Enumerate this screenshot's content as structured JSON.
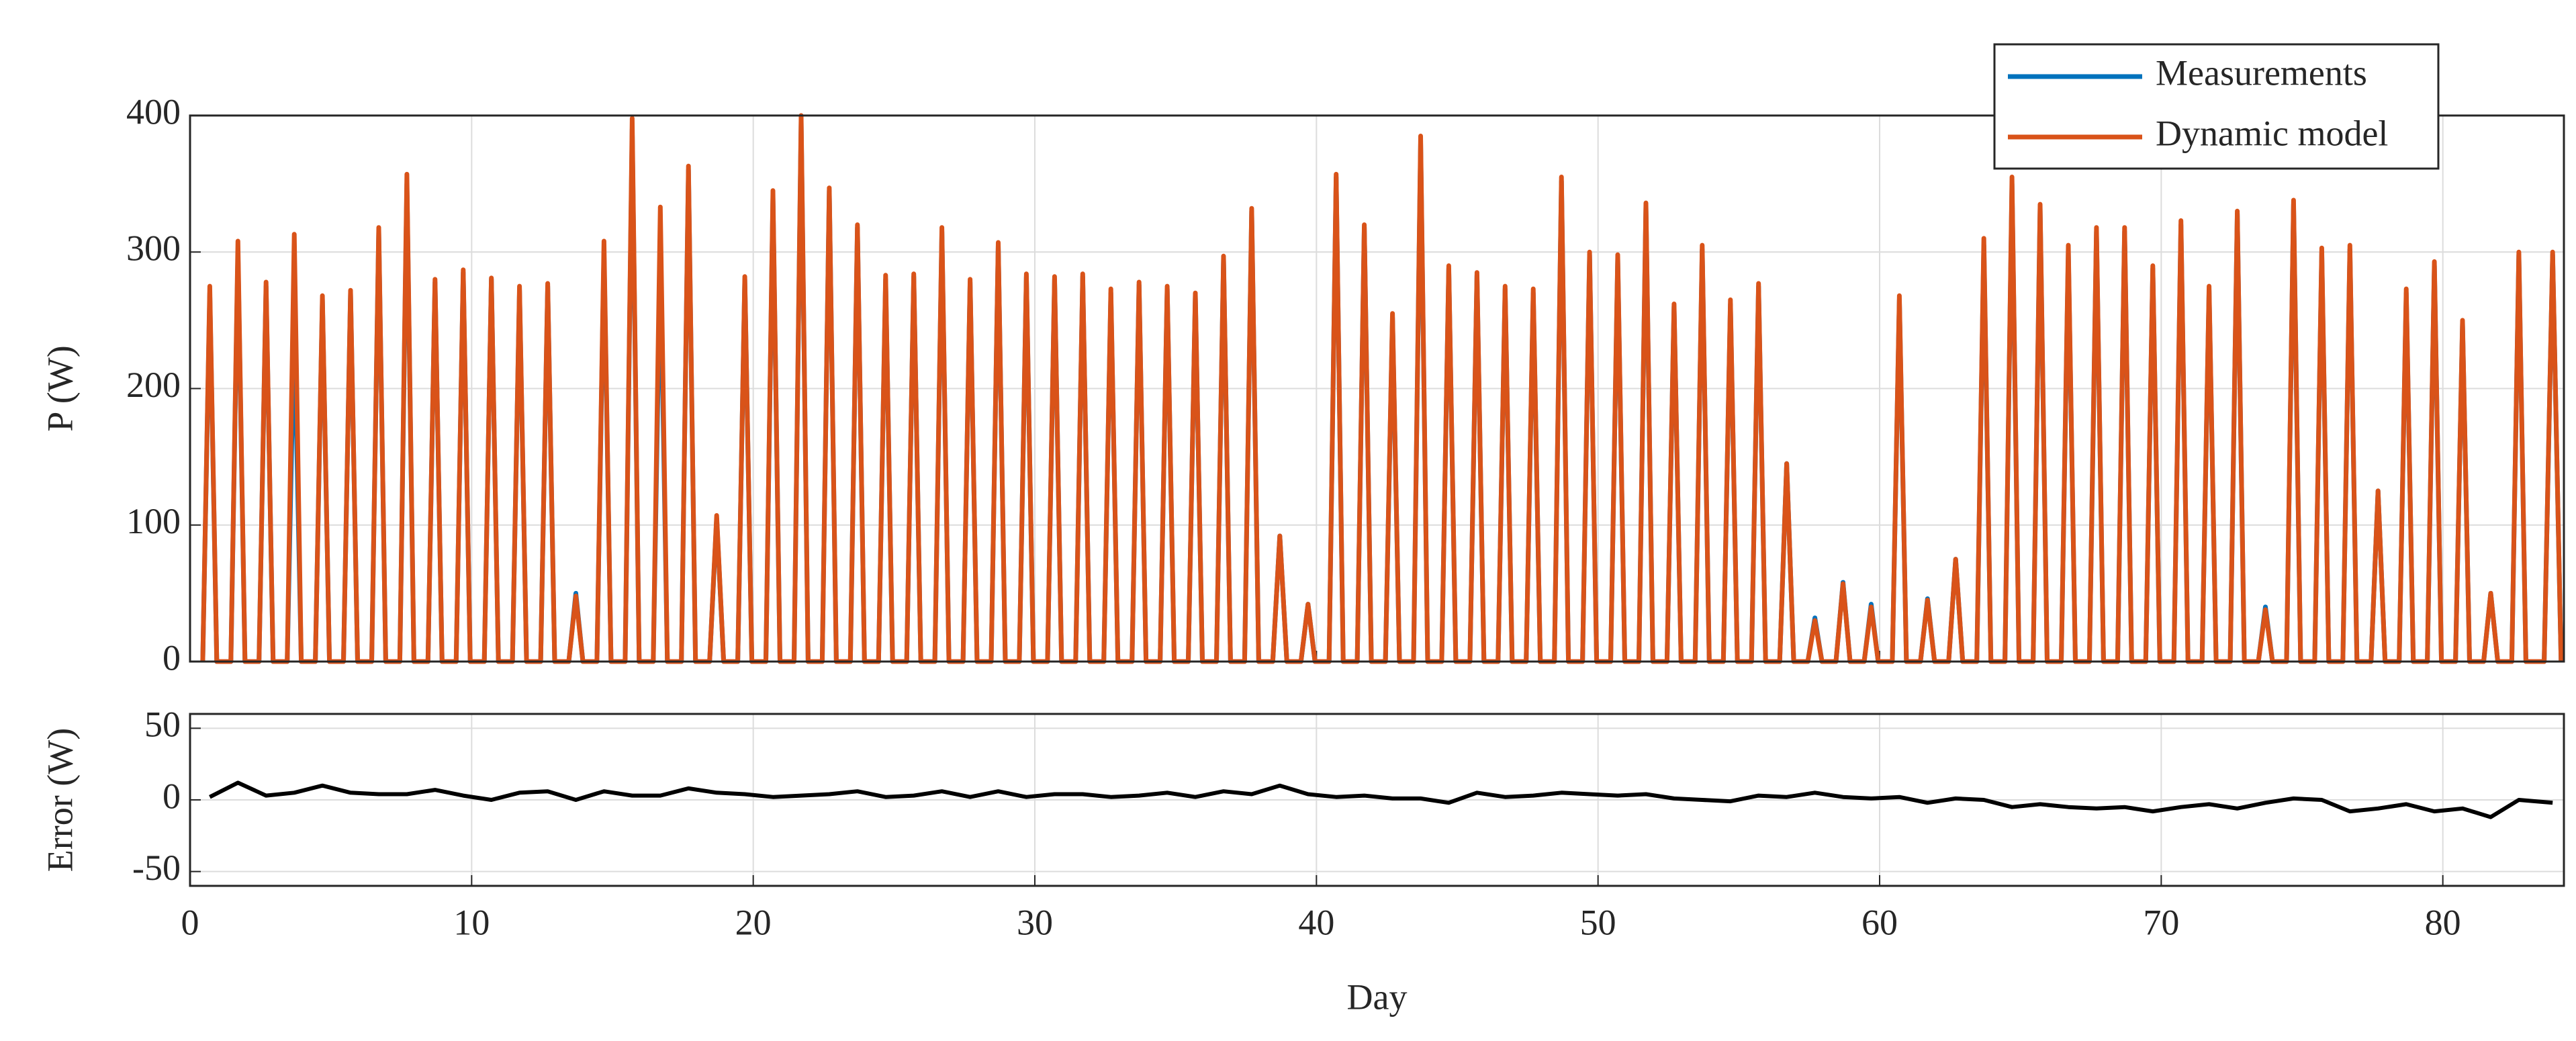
{
  "chart_data": [
    {
      "type": "line",
      "ylabel": "P (W)",
      "x": [
        0.45,
        0.7,
        0.95,
        1.45,
        1.7,
        1.95,
        2.45,
        2.7,
        2.95,
        3.45,
        3.7,
        3.95,
        4.45,
        4.7,
        4.95,
        5.45,
        5.7,
        5.95,
        6.45,
        6.7,
        6.95,
        7.45,
        7.7,
        7.95,
        8.45,
        8.7,
        8.95,
        9.45,
        9.7,
        9.95,
        10.45,
        10.7,
        10.95,
        11.45,
        11.7,
        11.95,
        12.45,
        12.7,
        12.95,
        13.45,
        13.7,
        13.95,
        14.45,
        14.7,
        14.95,
        15.45,
        15.7,
        15.95,
        16.45,
        16.7,
        16.95,
        17.45,
        17.7,
        17.95,
        18.45,
        18.7,
        18.95,
        19.45,
        19.7,
        19.95,
        20.45,
        20.7,
        20.95,
        21.45,
        21.7,
        21.95,
        22.45,
        22.7,
        22.95,
        23.45,
        23.7,
        23.95,
        24.45,
        24.7,
        24.95,
        25.45,
        25.7,
        25.95,
        26.45,
        26.7,
        26.95,
        27.45,
        27.7,
        27.95,
        28.45,
        28.7,
        28.95,
        29.45,
        29.7,
        29.95,
        30.45,
        30.7,
        30.95,
        31.45,
        31.7,
        31.95,
        32.45,
        32.7,
        32.95,
        33.45,
        33.7,
        33.95,
        34.45,
        34.7,
        34.95,
        35.45,
        35.7,
        35.95,
        36.45,
        36.7,
        36.95,
        37.45,
        37.7,
        37.95,
        38.45,
        38.7,
        38.95,
        39.45,
        39.7,
        39.95,
        40.45,
        40.7,
        40.95,
        41.45,
        41.7,
        41.95,
        42.45,
        42.7,
        42.95,
        43.45,
        43.7,
        43.95,
        44.45,
        44.7,
        44.95,
        45.45,
        45.7,
        45.95,
        46.45,
        46.7,
        46.95,
        47.45,
        47.7,
        47.95,
        48.45,
        48.7,
        48.95,
        49.45,
        49.7,
        49.95,
        50.45,
        50.7,
        50.95,
        51.45,
        51.7,
        51.95,
        52.45,
        52.7,
        52.95,
        53.45,
        53.7,
        53.95,
        54.45,
        54.7,
        54.95,
        55.45,
        55.7,
        55.95,
        56.45,
        56.7,
        56.95,
        57.45,
        57.7,
        57.95,
        58.45,
        58.7,
        58.95,
        59.45,
        59.7,
        59.95,
        60.45,
        60.7,
        60.95,
        61.45,
        61.7,
        61.95,
        62.45,
        62.7,
        62.95,
        63.45,
        63.7,
        63.95,
        64.45,
        64.7,
        64.95,
        65.45,
        65.7,
        65.95,
        66.45,
        66.7,
        66.95,
        67.45,
        67.7,
        67.95,
        68.45,
        68.7,
        68.95,
        69.45,
        69.7,
        69.95,
        70.45,
        70.7,
        70.95,
        71.45,
        71.7,
        71.95,
        72.45,
        72.7,
        72.95,
        73.45,
        73.7,
        73.95,
        74.45,
        74.7,
        74.95,
        75.45,
        75.7,
        75.95,
        76.45,
        76.7,
        76.95,
        77.45,
        77.7,
        77.95,
        78.45,
        78.7,
        78.95,
        79.45,
        79.7,
        79.95,
        80.45,
        80.7,
        80.95,
        81.45,
        81.7,
        81.95,
        82.45,
        82.7,
        82.95,
        83.6,
        83.9,
        84.2
      ],
      "series": [
        {
          "name": "Measurements",
          "color": "#0072bd",
          "values": [
            0,
            270,
            0,
            0,
            300,
            0,
            0,
            275,
            0,
            0,
            250,
            0,
            0,
            265,
            0,
            0,
            270,
            0,
            0,
            315,
            0,
            0,
            350,
            0,
            0,
            278,
            0,
            0,
            285,
            0,
            0,
            280,
            0,
            0,
            272,
            0,
            0,
            275,
            0,
            0,
            50,
            0,
            0,
            300,
            0,
            0,
            390,
            0,
            0,
            300,
            0,
            0,
            360,
            0,
            0,
            105,
            0,
            0,
            280,
            0,
            0,
            340,
            0,
            0,
            395,
            0,
            0,
            345,
            0,
            0,
            318,
            0,
            0,
            280,
            0,
            0,
            282,
            0,
            0,
            315,
            0,
            0,
            278,
            0,
            0,
            305,
            0,
            0,
            282,
            0,
            0,
            280,
            0,
            0,
            282,
            0,
            0,
            270,
            0,
            0,
            276,
            0,
            0,
            273,
            0,
            0,
            268,
            0,
            0,
            295,
            0,
            0,
            330,
            0,
            0,
            92,
            0,
            0,
            42,
            0,
            0,
            355,
            0,
            0,
            318,
            0,
            0,
            252,
            0,
            0,
            380,
            0,
            0,
            288,
            0,
            0,
            283,
            0,
            0,
            273,
            0,
            0,
            270,
            0,
            0,
            352,
            0,
            0,
            298,
            0,
            0,
            295,
            0,
            0,
            333,
            0,
            0,
            260,
            0,
            0,
            302,
            0,
            0,
            262,
            0,
            0,
            275,
            0,
            0,
            145,
            0,
            0,
            32,
            0,
            0,
            58,
            0,
            0,
            42,
            0,
            0,
            265,
            0,
            0,
            46,
            0,
            0,
            75,
            0,
            0,
            305,
            0,
            0,
            350,
            0,
            0,
            332,
            0,
            0,
            300,
            0,
            0,
            315,
            0,
            0,
            315,
            0,
            0,
            288,
            0,
            0,
            320,
            0,
            0,
            272,
            0,
            0,
            328,
            0,
            0,
            40,
            0,
            0,
            335,
            0,
            0,
            300,
            0,
            0,
            302,
            0,
            0,
            125,
            0,
            0,
            270,
            0,
            0,
            290,
            0,
            0,
            248,
            0,
            0,
            50,
            0,
            0,
            298,
            0,
            0,
            298,
            0
          ]
        },
        {
          "name": "Dynamic model",
          "color": "#d95319",
          "values": [
            0,
            275,
            0,
            0,
            308,
            0,
            0,
            278,
            0,
            0,
            313,
            0,
            0,
            268,
            0,
            0,
            272,
            0,
            0,
            318,
            0,
            0,
            357,
            0,
            0,
            280,
            0,
            0,
            287,
            0,
            0,
            281,
            0,
            0,
            275,
            0,
            0,
            277,
            0,
            0,
            48,
            0,
            0,
            308,
            0,
            0,
            398,
            0,
            0,
            333,
            0,
            0,
            363,
            0,
            0,
            107,
            0,
            0,
            282,
            0,
            0,
            345,
            0,
            0,
            400,
            0,
            0,
            347,
            0,
            0,
            320,
            0,
            0,
            283,
            0,
            0,
            284,
            0,
            0,
            318,
            0,
            0,
            280,
            0,
            0,
            307,
            0,
            0,
            284,
            0,
            0,
            282,
            0,
            0,
            284,
            0,
            0,
            273,
            0,
            0,
            278,
            0,
            0,
            275,
            0,
            0,
            270,
            0,
            0,
            297,
            0,
            0,
            332,
            0,
            0,
            92,
            0,
            0,
            42,
            0,
            0,
            357,
            0,
            0,
            320,
            0,
            0,
            255,
            0,
            0,
            385,
            0,
            0,
            290,
            0,
            0,
            285,
            0,
            0,
            275,
            0,
            0,
            273,
            0,
            0,
            355,
            0,
            0,
            300,
            0,
            0,
            298,
            0,
            0,
            336,
            0,
            0,
            262,
            0,
            0,
            305,
            0,
            0,
            265,
            0,
            0,
            277,
            0,
            0,
            145,
            0,
            0,
            30,
            0,
            0,
            57,
            0,
            0,
            40,
            0,
            0,
            268,
            0,
            0,
            45,
            0,
            0,
            75,
            0,
            0,
            310,
            0,
            0,
            355,
            0,
            0,
            335,
            0,
            0,
            305,
            0,
            0,
            318,
            0,
            0,
            318,
            0,
            0,
            290,
            0,
            0,
            323,
            0,
            0,
            275,
            0,
            0,
            330,
            0,
            0,
            38,
            0,
            0,
            338,
            0,
            0,
            303,
            0,
            0,
            305,
            0,
            0,
            125,
            0,
            0,
            273,
            0,
            0,
            293,
            0,
            0,
            250,
            0,
            0,
            50,
            0,
            0,
            300,
            0,
            0,
            300,
            0
          ]
        }
      ],
      "xlim": [
        0,
        84.3
      ],
      "xticks": [
        0,
        10,
        20,
        30,
        40,
        50,
        60,
        70,
        80
      ],
      "ylim": [
        0,
        400
      ],
      "yticks": [
        0,
        100,
        200,
        300,
        400
      ],
      "grid": true,
      "legend": "top-right"
    },
    {
      "type": "line",
      "ylabel": "Error (W)",
      "xlabel": "Day",
      "x": [
        0.7,
        1.7,
        2.7,
        3.7,
        4.7,
        5.7,
        6.7,
        7.7,
        8.7,
        9.7,
        10.7,
        11.7,
        12.7,
        13.7,
        14.7,
        15.7,
        16.7,
        17.7,
        18.7,
        19.7,
        20.7,
        21.7,
        22.7,
        23.7,
        24.7,
        25.7,
        26.7,
        27.7,
        28.7,
        29.7,
        30.7,
        31.7,
        32.7,
        33.7,
        34.7,
        35.7,
        36.7,
        37.7,
        38.7,
        39.7,
        40.7,
        41.7,
        42.7,
        43.7,
        44.7,
        45.7,
        46.7,
        47.7,
        48.7,
        49.7,
        50.7,
        51.7,
        52.7,
        53.7,
        54.7,
        55.7,
        56.7,
        57.7,
        58.7,
        59.7,
        60.7,
        61.7,
        62.7,
        63.7,
        64.7,
        65.7,
        66.7,
        67.7,
        68.7,
        69.7,
        70.7,
        71.7,
        72.7,
        73.7,
        74.7,
        75.7,
        76.7,
        77.7,
        78.7,
        79.7,
        80.7,
        81.7,
        82.7,
        83.9
      ],
      "series": [
        {
          "name": "Error",
          "color": "#000000",
          "values": [
            2,
            12,
            3,
            5,
            10,
            5,
            4,
            4,
            7,
            3,
            0,
            5,
            6,
            0,
            6,
            3,
            3,
            8,
            5,
            4,
            2,
            3,
            4,
            6,
            2,
            3,
            6,
            2,
            6,
            2,
            4,
            4,
            2,
            3,
            5,
            2,
            6,
            4,
            10,
            4,
            2,
            3,
            1,
            1,
            -2,
            5,
            2,
            3,
            5,
            4,
            3,
            4,
            1,
            0,
            -1,
            3,
            2,
            5,
            2,
            1,
            2,
            -2,
            1,
            0,
            -5,
            -3,
            -5,
            -6,
            -5,
            -8,
            -5,
            -3,
            -6,
            -2,
            1,
            0,
            -8,
            -6,
            -3,
            -8,
            -6,
            -12,
            0,
            -2
          ]
        }
      ],
      "xlim": [
        0,
        84.3
      ],
      "xticks": [
        0,
        10,
        20,
        30,
        40,
        50,
        60,
        70,
        80
      ],
      "ylim": [
        -60,
        60
      ],
      "yticks": [
        -50,
        0,
        50
      ],
      "grid": true
    }
  ]
}
